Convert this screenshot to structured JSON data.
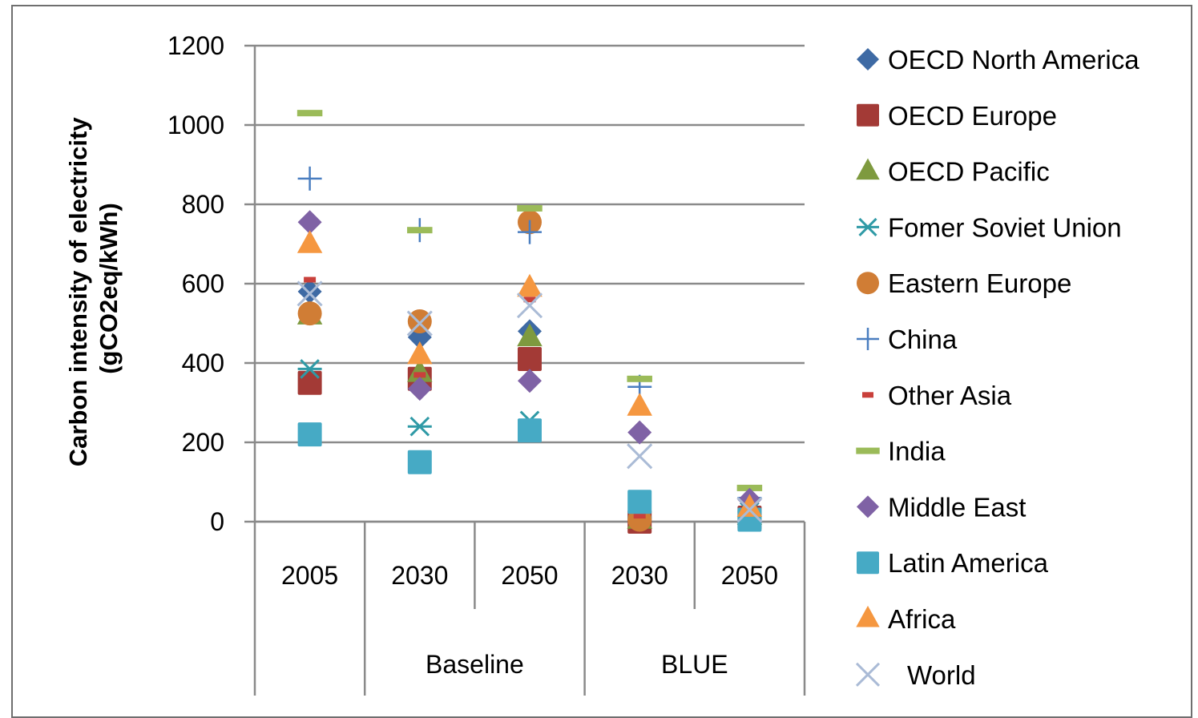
{
  "chart_data": {
    "type": "scatter",
    "title": "",
    "ylabel_lines": [
      "Carbon intensity of electricity",
      "(gCO2eq/kWh)"
    ],
    "ylim": [
      0,
      1200
    ],
    "yticks": [
      0,
      200,
      400,
      600,
      800,
      1000,
      1200
    ],
    "grid": true,
    "legend_position": "right",
    "categories": [
      "2005",
      "2030",
      "2050",
      "2030",
      "2050"
    ],
    "groups": [
      {
        "label": "",
        "categories": [
          "2005"
        ]
      },
      {
        "label": "Baseline",
        "categories": [
          "2030",
          "2050"
        ]
      },
      {
        "label": "BLUE",
        "categories": [
          "2030",
          "2050"
        ]
      }
    ],
    "series": [
      {
        "name": "OECD North America",
        "marker": "diamond",
        "color": "#3e6aa4",
        "values": [
          580,
          465,
          480,
          10,
          20
        ]
      },
      {
        "name": "OECD Europe",
        "marker": "square",
        "color": "#a33a36",
        "values": [
          350,
          360,
          410,
          0,
          10
        ]
      },
      {
        "name": "OECD Pacific",
        "marker": "triangle",
        "color": "#7e9a3f",
        "values": [
          520,
          375,
          465,
          5,
          15
        ]
      },
      {
        "name": "Fomer Soviet Union",
        "marker": "star",
        "color": "#2f9aa6",
        "values": [
          385,
          240,
          255,
          10,
          25
        ]
      },
      {
        "name": "Eastern Europe",
        "marker": "circle",
        "color": "#d07d35",
        "values": [
          525,
          505,
          755,
          5,
          10
        ]
      },
      {
        "name": "China",
        "marker": "plus",
        "color": "#4a7ec0",
        "values": [
          865,
          735,
          730,
          340,
          60
        ]
      },
      {
        "name": "Other Asia",
        "marker": "dash",
        "color": "#c9403b",
        "values": [
          610,
          370,
          560,
          15,
          30
        ]
      },
      {
        "name": "India",
        "marker": "longdash",
        "color": "#9bbb59",
        "values": [
          1030,
          735,
          790,
          360,
          85
        ]
      },
      {
        "name": "Middle East",
        "marker": "diamond",
        "color": "#7f62a5",
        "values": [
          755,
          335,
          355,
          225,
          55
        ]
      },
      {
        "name": "Latin America",
        "marker": "square",
        "color": "#46aac5",
        "values": [
          220,
          150,
          230,
          50,
          5
        ]
      },
      {
        "name": "Africa",
        "marker": "triangle",
        "color": "#f59740",
        "values": [
          700,
          420,
          590,
          290,
          35
        ]
      },
      {
        "name": "World",
        "marker": "x",
        "color": "#aabbd6",
        "values": [
          575,
          500,
          545,
          165,
          30
        ]
      }
    ]
  }
}
